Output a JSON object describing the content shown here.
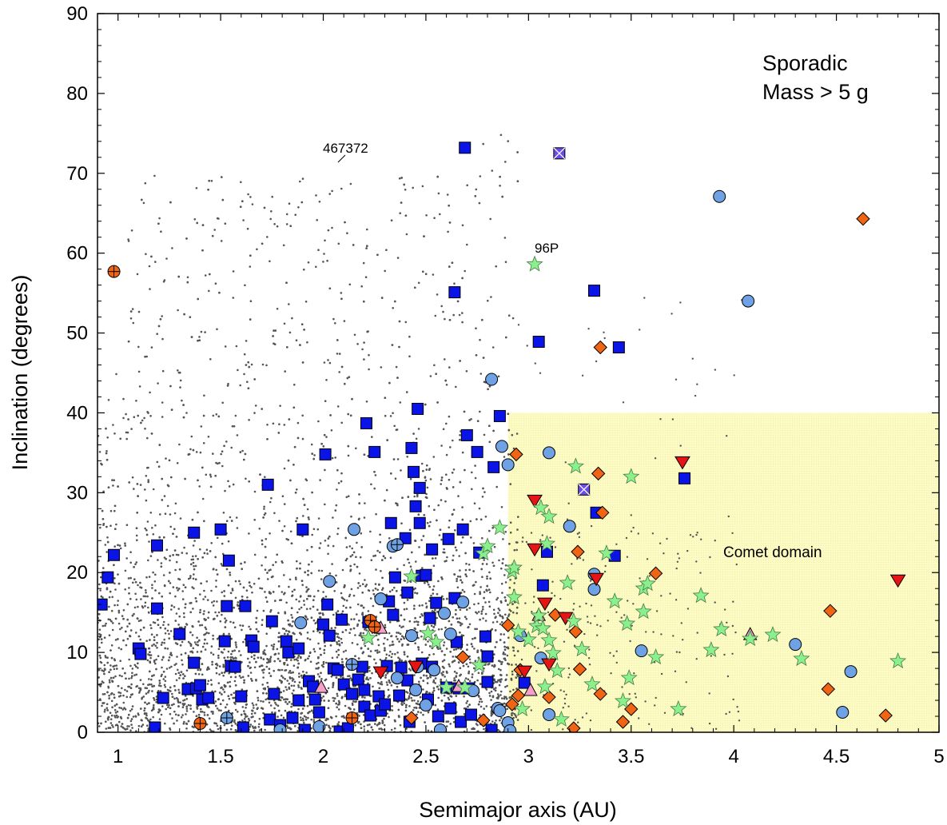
{
  "chart_data": {
    "type": "scatter",
    "title": "",
    "xlabel": "Semimajor axis (AU)",
    "ylabel": "Inclination (degrees)",
    "xlim": [
      0.9,
      5
    ],
    "ylim": [
      0,
      90
    ],
    "x_ticks": [
      1,
      1.5,
      2,
      2.5,
      3,
      3.5,
      4,
      4.5,
      5
    ],
    "x_tick_labels": [
      "1",
      "1.5",
      "2",
      "2.5",
      "3",
      "3.5",
      "4",
      "4.5",
      "5"
    ],
    "y_ticks": [
      0,
      10,
      20,
      30,
      40,
      50,
      60,
      70,
      80,
      90
    ],
    "y_tick_labels": [
      "0",
      "10",
      "20",
      "30",
      "40",
      "50",
      "60",
      "70",
      "80",
      "90"
    ],
    "grid": false,
    "legend_text": [
      "Sporadic",
      "Mass > 5 g"
    ],
    "legend_position": "top-right",
    "comet_domain": {
      "label": "Comet domain",
      "x_range": [
        2.9,
        5
      ],
      "y_range": [
        0,
        40
      ],
      "color": "#fdfbc4"
    },
    "annotations": [
      {
        "text": "467372",
        "x": 2.09,
        "y": 73.2
      },
      {
        "text": "96P",
        "x": 3.1,
        "y": 60.6
      }
    ],
    "background_population": {
      "description_color": "#555555",
      "x_range": [
        0.9,
        4.3
      ],
      "y_range": [
        0,
        75
      ]
    },
    "series": [
      {
        "marker": "square",
        "color": "#0a14e6",
        "points": [
          [
            0.92,
            16
          ],
          [
            0.95,
            19.4
          ],
          [
            0.98,
            22.2
          ],
          [
            1.1,
            10.5
          ],
          [
            1.11,
            9.8
          ],
          [
            1.19,
            23.4
          ],
          [
            1.19,
            15.5
          ],
          [
            1.18,
            0.6
          ],
          [
            1.22,
            4.3
          ],
          [
            1.3,
            12.3
          ],
          [
            1.34,
            5.4
          ],
          [
            1.37,
            25
          ],
          [
            1.37,
            8.7
          ],
          [
            1.38,
            5.5
          ],
          [
            1.4,
            5.9
          ],
          [
            1.41,
            4.1
          ],
          [
            1.44,
            4.3
          ],
          [
            1.5,
            25.4
          ],
          [
            1.52,
            11.4
          ],
          [
            1.54,
            21.5
          ],
          [
            1.53,
            15.8
          ],
          [
            1.55,
            8.3
          ],
          [
            1.57,
            8.2
          ],
          [
            1.6,
            4.5
          ],
          [
            1.62,
            15.8
          ],
          [
            1.61,
            0.6
          ],
          [
            1.65,
            11.5
          ],
          [
            1.66,
            10.7
          ],
          [
            1.73,
            31
          ],
          [
            1.75,
            13.9
          ],
          [
            1.76,
            4.8
          ],
          [
            1.74,
            1.6
          ],
          [
            1.79,
            0.9
          ],
          [
            1.82,
            11.4
          ],
          [
            1.83,
            10
          ],
          [
            1.85,
            1.8
          ],
          [
            1.88,
            4
          ],
          [
            1.9,
            25.4
          ],
          [
            1.88,
            10.5
          ],
          [
            1.91,
            0.3
          ],
          [
            1.93,
            6.4
          ],
          [
            1.95,
            5.7
          ],
          [
            1.96,
            4.1
          ],
          [
            1.98,
            2.5
          ],
          [
            2,
            13.5
          ],
          [
            2.01,
            34.8
          ],
          [
            2.02,
            16
          ],
          [
            2.03,
            12.1
          ],
          [
            2.05,
            8
          ],
          [
            2.07,
            7.8
          ],
          [
            2.09,
            14.1
          ],
          [
            2.08,
            0.1
          ],
          [
            2.1,
            6
          ],
          [
            2.12,
            0.5
          ],
          [
            2.14,
            4.8
          ],
          [
            2.17,
            6.6
          ],
          [
            2.19,
            8.2
          ],
          [
            2.2,
            3.2
          ],
          [
            2.21,
            38.7
          ],
          [
            2.22,
            13.8
          ],
          [
            2.2,
            5.3
          ],
          [
            2.23,
            2.1
          ],
          [
            2.25,
            35.1
          ],
          [
            2.27,
            4.5
          ],
          [
            2.28,
            2.7
          ],
          [
            2.3,
            3.5
          ],
          [
            2.32,
            16.4
          ],
          [
            2.33,
            26.2
          ],
          [
            2.31,
            8.3
          ],
          [
            2.34,
            14.7
          ],
          [
            2.35,
            19.4
          ],
          [
            2.37,
            4.6
          ],
          [
            2.38,
            8.1
          ],
          [
            2.4,
            24.3
          ],
          [
            2.41,
            17.5
          ],
          [
            2.41,
            6.5
          ],
          [
            2.42,
            1.3
          ],
          [
            2.43,
            35.6
          ],
          [
            2.44,
            32.6
          ],
          [
            2.45,
            28.3
          ],
          [
            2.46,
            40.5
          ],
          [
            2.47,
            30.6
          ],
          [
            2.47,
            26.2
          ],
          [
            2.48,
            19.6
          ],
          [
            2.5,
            19.7
          ],
          [
            2.48,
            8.6
          ],
          [
            2.51,
            4.1
          ],
          [
            2.52,
            14.3
          ],
          [
            2.53,
            22.9
          ],
          [
            2.53,
            8.2
          ],
          [
            2.55,
            16.2
          ],
          [
            2.56,
            2
          ],
          [
            2.6,
            5.6
          ],
          [
            2.61,
            24.2
          ],
          [
            2.62,
            3
          ],
          [
            2.64,
            55.1
          ],
          [
            2.64,
            16.8
          ],
          [
            2.65,
            11.3
          ],
          [
            2.66,
            5.5
          ],
          [
            2.67,
            1.3
          ],
          [
            2.68,
            25.4
          ],
          [
            2.69,
            73.2
          ],
          [
            2.7,
            37.2
          ],
          [
            2.71,
            5.5
          ],
          [
            2.72,
            2.2
          ],
          [
            2.75,
            35.1
          ],
          [
            2.76,
            22.5
          ],
          [
            2.79,
            12
          ],
          [
            2.8,
            9.5
          ],
          [
            2.8,
            6.3
          ],
          [
            2.82,
            0.3
          ],
          [
            2.83,
            33.2
          ],
          [
            2.86,
            39.6
          ],
          [
            3.05,
            48.9
          ],
          [
            3.07,
            18.4
          ],
          [
            3.09,
            22.6
          ],
          [
            3.33,
            27.5
          ],
          [
            3.32,
            55.3
          ],
          [
            3.44,
            48.2
          ],
          [
            3.42,
            22.1
          ],
          [
            3.76,
            31.8
          ],
          [
            2.98,
            6.2
          ]
        ]
      },
      {
        "marker": "circle",
        "color": "#6fa2e4",
        "points": [
          [
            1.79,
            0.3
          ],
          [
            1.89,
            13.7
          ],
          [
            1.98,
            0.7
          ],
          [
            2.03,
            18.9
          ],
          [
            2.15,
            25.4
          ],
          [
            2.28,
            16.7
          ],
          [
            2.34,
            23.3
          ],
          [
            2.36,
            6.8
          ],
          [
            2.43,
            12.1
          ],
          [
            2.45,
            5.3
          ],
          [
            2.46,
            8.2
          ],
          [
            2.5,
            3.4
          ],
          [
            2.54,
            7.8
          ],
          [
            2.57,
            0.3
          ],
          [
            2.59,
            14.9
          ],
          [
            2.62,
            12.3
          ],
          [
            2.68,
            16.3
          ],
          [
            2.73,
            5.2
          ],
          [
            2.82,
            44.2
          ],
          [
            2.85,
            3
          ],
          [
            2.86,
            2.7
          ],
          [
            2.87,
            35.8
          ],
          [
            2.9,
            33.5
          ],
          [
            2.9,
            1.2
          ],
          [
            2.91,
            0.2
          ],
          [
            2.96,
            12.1
          ],
          [
            3.06,
            9.3
          ],
          [
            3.1,
            35
          ],
          [
            3.1,
            2.2
          ],
          [
            3.2,
            25.8
          ],
          [
            3.32,
            19.8
          ],
          [
            3.32,
            17.9
          ],
          [
            3.55,
            10.2
          ],
          [
            3.93,
            67.1
          ],
          [
            4.07,
            54
          ],
          [
            4.3,
            11
          ],
          [
            4.53,
            2.5
          ],
          [
            4.57,
            7.6
          ]
        ]
      },
      {
        "marker": "diamond",
        "color": "#f06414",
        "points": [
          [
            2.43,
            1.8
          ],
          [
            2.68,
            9.4
          ],
          [
            2.78,
            1.5
          ],
          [
            2.9,
            13.4
          ],
          [
            2.92,
            3.5
          ],
          [
            2.95,
            4.6
          ],
          [
            2.94,
            34.8
          ],
          [
            2.96,
            7.8
          ],
          [
            3.1,
            4.4
          ],
          [
            3.13,
            14.7
          ],
          [
            3.22,
            0.5
          ],
          [
            3.23,
            12.6
          ],
          [
            3.24,
            22.6
          ],
          [
            3.25,
            7.9
          ],
          [
            3.34,
            32.4
          ],
          [
            3.35,
            48.2
          ],
          [
            3.36,
            27.5
          ],
          [
            3.35,
            4.8
          ],
          [
            3.46,
            1.3
          ],
          [
            3.5,
            2.9
          ],
          [
            3.62,
            19.9
          ],
          [
            4.46,
            5.4
          ],
          [
            4.47,
            15.2
          ],
          [
            4.63,
            64.3
          ],
          [
            4.74,
            2.1
          ]
        ]
      },
      {
        "marker": "star",
        "color": "#8af08c",
        "points": [
          [
            2.22,
            11.8
          ],
          [
            2.43,
            19.5
          ],
          [
            2.51,
            12.4
          ],
          [
            2.55,
            11.3
          ],
          [
            2.6,
            5.6
          ],
          [
            2.69,
            5.6
          ],
          [
            2.76,
            8.4
          ],
          [
            2.78,
            22.4
          ],
          [
            2.8,
            23.3
          ],
          [
            2.86,
            25.6
          ],
          [
            2.92,
            20.1
          ],
          [
            2.93,
            16.9
          ],
          [
            2.93,
            20.6
          ],
          [
            2.95,
            12.6
          ],
          [
            2.97,
            2.9
          ],
          [
            3,
            11.6
          ],
          [
            3.03,
            58.6
          ],
          [
            3.04,
            13.3
          ],
          [
            3.05,
            14.6
          ],
          [
            3.06,
            28.1
          ],
          [
            3.07,
            13
          ],
          [
            3.08,
            5.7
          ],
          [
            3.09,
            23.6
          ],
          [
            3.1,
            27
          ],
          [
            3.1,
            11.5
          ],
          [
            3.12,
            9.9
          ],
          [
            3.14,
            7.7
          ],
          [
            3.16,
            1.6
          ],
          [
            3.19,
            18.7
          ],
          [
            3.22,
            13.9
          ],
          [
            3.23,
            33.3
          ],
          [
            3.26,
            10.4
          ],
          [
            3.31,
            6
          ],
          [
            3.38,
            22.4
          ],
          [
            3.42,
            16.4
          ],
          [
            3.46,
            3.9
          ],
          [
            3.48,
            13.6
          ],
          [
            3.5,
            32
          ],
          [
            3.49,
            6.8
          ],
          [
            3.56,
            18
          ],
          [
            3.56,
            15.1
          ],
          [
            3.58,
            18.6
          ],
          [
            3.62,
            9.4
          ],
          [
            3.73,
            2.9
          ],
          [
            3.84,
            17.1
          ],
          [
            3.89,
            10.3
          ],
          [
            3.94,
            12.9
          ],
          [
            4.08,
            11.7
          ],
          [
            4.19,
            12.2
          ],
          [
            4.33,
            9.2
          ],
          [
            4.8,
            8.9
          ]
        ]
      },
      {
        "marker": "triangle-down",
        "color": "#e61414",
        "points": [
          [
            2.28,
            7.5
          ],
          [
            2.45,
            8.2
          ],
          [
            2.98,
            7.6
          ],
          [
            3.03,
            29
          ],
          [
            3.03,
            22.9
          ],
          [
            3.08,
            16.1
          ],
          [
            3.1,
            8.5
          ],
          [
            3.18,
            14.3
          ],
          [
            3.33,
            19.2
          ],
          [
            3.75,
            33.8
          ],
          [
            4.8,
            19
          ]
        ]
      },
      {
        "marker": "triangle-up",
        "color": "#f4a0c8",
        "points": [
          [
            1.99,
            5.7
          ],
          [
            2.28,
            13.1
          ],
          [
            3.05,
            14.7
          ],
          [
            4.08,
            12.3
          ],
          [
            2.66,
            5.8
          ],
          [
            3.01,
            5.3
          ]
        ]
      },
      {
        "marker": "circle-plus",
        "color": "#f06414",
        "points": [
          [
            0.98,
            57.7
          ],
          [
            1.4,
            1.1
          ],
          [
            2.14,
            1.8
          ],
          [
            2.23,
            14
          ],
          [
            2.25,
            13.2
          ]
        ]
      },
      {
        "marker": "circle-plus",
        "color": "#6fa2e4",
        "points": [
          [
            1.53,
            1.8
          ],
          [
            2.14,
            8.5
          ],
          [
            2.36,
            23.5
          ]
        ]
      },
      {
        "marker": "square-x",
        "color": "#6a4ce6",
        "points": [
          [
            3.15,
            72.5
          ],
          [
            3.27,
            30.4
          ]
        ]
      }
    ]
  }
}
